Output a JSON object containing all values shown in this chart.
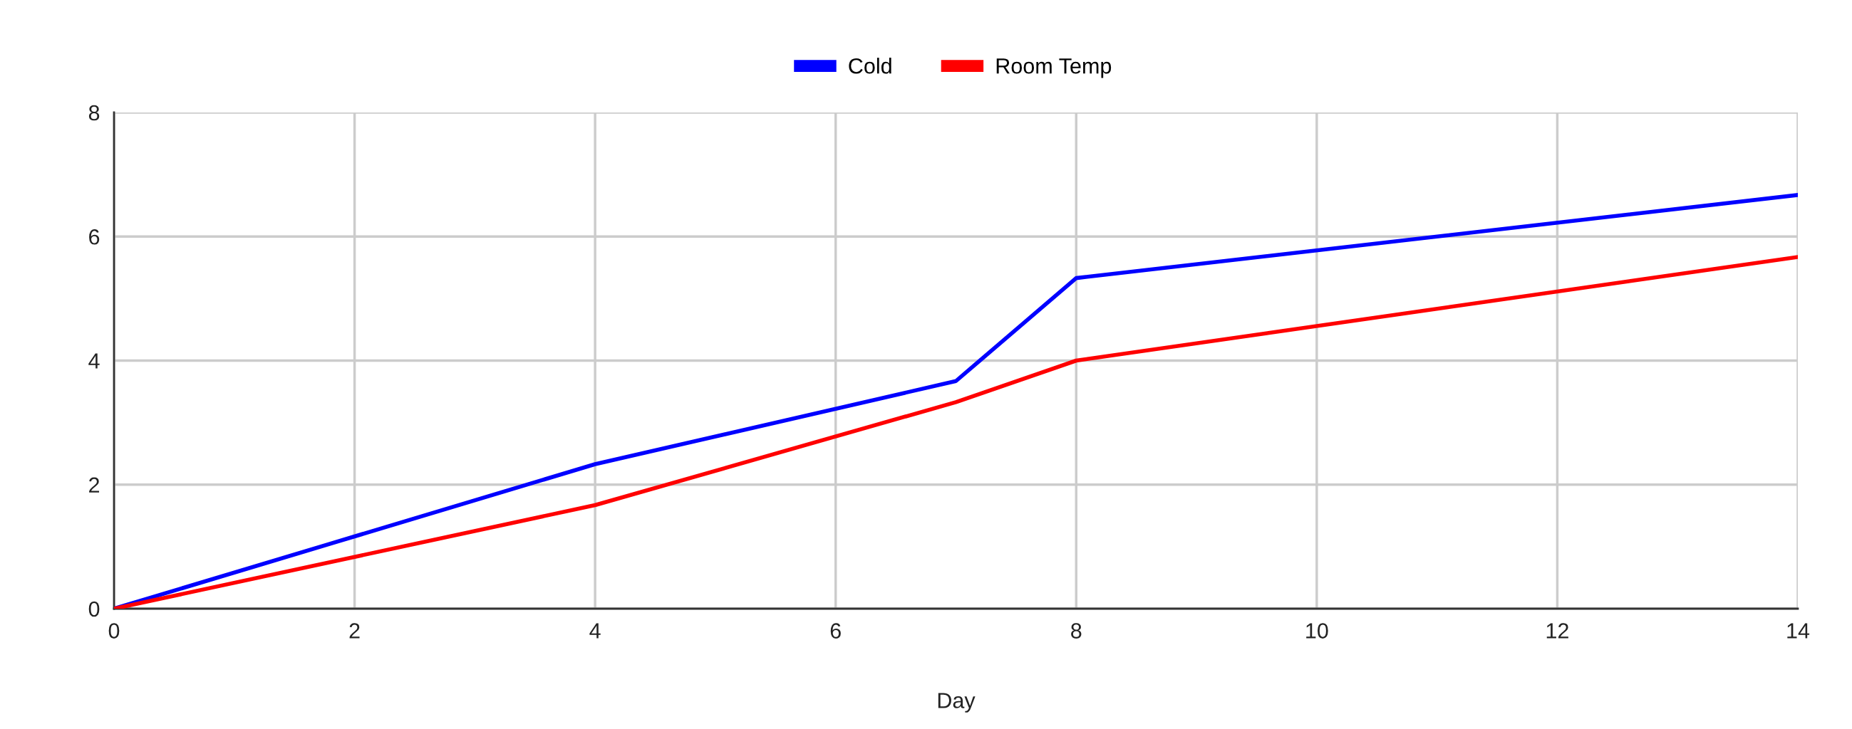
{
  "chart_data": {
    "type": "line",
    "xlabel": "Day",
    "series": [
      {
        "name": "Cold",
        "color": "#0000ff",
        "x": [
          0,
          4,
          7,
          8,
          14
        ],
        "values": [
          0,
          2.33,
          3.67,
          5.33,
          6.67
        ]
      },
      {
        "name": "Room Temp",
        "color": "#ff0000",
        "x": [
          0,
          4,
          7,
          8,
          14
        ],
        "values": [
          0,
          1.67,
          3.33,
          4,
          5.67
        ]
      }
    ],
    "xlim": [
      0,
      14
    ],
    "xticks": [
      0,
      2,
      4,
      6,
      8,
      10,
      12,
      14
    ],
    "ylim": [
      0,
      8
    ],
    "yticks": [
      0,
      2,
      4,
      6,
      8
    ],
    "grid": true,
    "legend": "top",
    "marker": "none",
    "line_style": "solid"
  }
}
